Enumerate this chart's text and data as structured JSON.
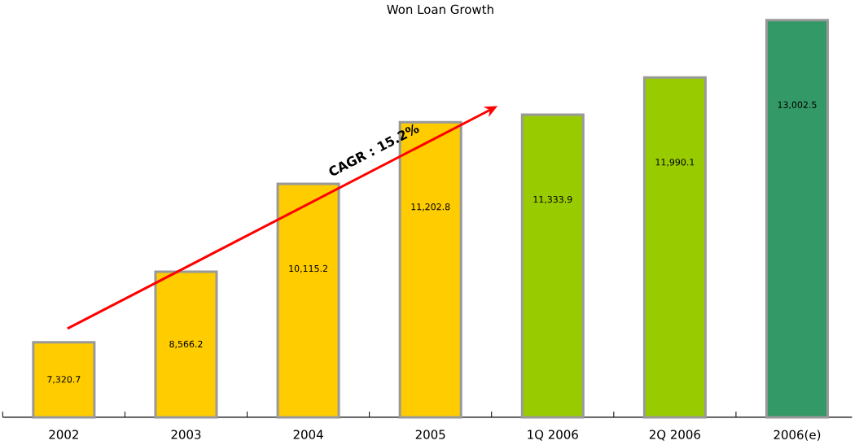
{
  "chart_data": {
    "type": "bar",
    "title": "Won Loan Growth",
    "categories": [
      "2002",
      "2003",
      "2004",
      "2005",
      "1Q 2006",
      "2Q 2006",
      "2006(e)"
    ],
    "values": [
      7320.7,
      8566.2,
      10115.2,
      11202.8,
      11333.9,
      11990.1,
      13002.5
    ],
    "value_labels": [
      "7,320.7",
      "8,566.2",
      "10,115.2",
      "11,202.8",
      "11,333.9",
      "11,990.1",
      "13,002.5"
    ],
    "colors": [
      "#ffcc00",
      "#ffcc00",
      "#ffcc00",
      "#ffcc00",
      "#99cc00",
      "#99cc00",
      "#339966"
    ],
    "ylim": [
      6000,
      13002.5
    ],
    "annotations": [
      "CAGR : 15.2%"
    ]
  }
}
